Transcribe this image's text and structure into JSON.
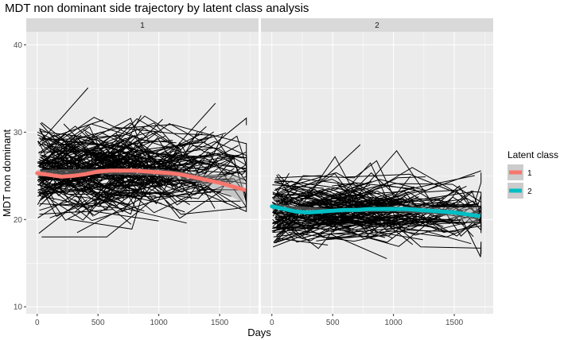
{
  "chart_data": {
    "type": "line",
    "title": "MDT non dominant side trajectory by latent class analysis",
    "xlabel": "Days",
    "ylabel": "MDT non dominant",
    "xlim": [
      -90,
      1820
    ],
    "ylim": [
      9.2,
      41.5
    ],
    "x_ticks": [
      0,
      500,
      1000,
      1500
    ],
    "y_ticks": [
      10,
      20,
      30,
      40
    ],
    "grid": true,
    "facets": [
      "1",
      "2"
    ],
    "legend": {
      "title": "Latent class",
      "position": "right",
      "entries": [
        {
          "label": "1",
          "color": "#F8766D"
        },
        {
          "label": "2",
          "color": "#00BFC4"
        }
      ]
    },
    "series": [
      {
        "name": "1",
        "facet": "1",
        "color": "#F8766D",
        "smooth": [
          {
            "x": 0,
            "y": 25.3
          },
          {
            "x": 100,
            "y": 25.1
          },
          {
            "x": 200,
            "y": 24.9
          },
          {
            "x": 300,
            "y": 25.0
          },
          {
            "x": 400,
            "y": 25.2
          },
          {
            "x": 500,
            "y": 25.5
          },
          {
            "x": 600,
            "y": 25.6
          },
          {
            "x": 700,
            "y": 25.6
          },
          {
            "x": 800,
            "y": 25.6
          },
          {
            "x": 900,
            "y": 25.5
          },
          {
            "x": 1000,
            "y": 25.4
          },
          {
            "x": 1100,
            "y": 25.3
          },
          {
            "x": 1200,
            "y": 25.1
          },
          {
            "x": 1300,
            "y": 24.8
          },
          {
            "x": 1400,
            "y": 24.5
          },
          {
            "x": 1500,
            "y": 24.2
          },
          {
            "x": 1600,
            "y": 23.8
          },
          {
            "x": 1700,
            "y": 23.4
          }
        ],
        "ci": [
          {
            "x": 0,
            "lo": 24.9,
            "hi": 25.7
          },
          {
            "x": 500,
            "lo": 25.2,
            "hi": 25.8
          },
          {
            "x": 1000,
            "lo": 25.0,
            "hi": 25.8
          },
          {
            "x": 1300,
            "lo": 24.3,
            "hi": 25.3
          },
          {
            "x": 1500,
            "lo": 23.3,
            "hi": 25.1
          },
          {
            "x": 1600,
            "lo": 22.6,
            "hi": 25.0
          },
          {
            "x": 1700,
            "lo": 21.9,
            "hi": 24.9
          }
        ]
      },
      {
        "name": "2",
        "facet": "2",
        "color": "#00BFC4",
        "smooth": [
          {
            "x": 0,
            "y": 21.5
          },
          {
            "x": 100,
            "y": 21.2
          },
          {
            "x": 200,
            "y": 20.9
          },
          {
            "x": 300,
            "y": 20.8
          },
          {
            "x": 400,
            "y": 20.9
          },
          {
            "x": 500,
            "y": 21.0
          },
          {
            "x": 600,
            "y": 21.1
          },
          {
            "x": 700,
            "y": 21.1
          },
          {
            "x": 800,
            "y": 21.2
          },
          {
            "x": 900,
            "y": 21.2
          },
          {
            "x": 1000,
            "y": 21.2
          },
          {
            "x": 1100,
            "y": 21.2
          },
          {
            "x": 1200,
            "y": 21.1
          },
          {
            "x": 1300,
            "y": 21.0
          },
          {
            "x": 1400,
            "y": 20.9
          },
          {
            "x": 1500,
            "y": 20.8
          },
          {
            "x": 1600,
            "y": 20.6
          },
          {
            "x": 1700,
            "y": 20.4
          }
        ],
        "ci": [
          {
            "x": 0,
            "lo": 21.2,
            "hi": 21.8
          },
          {
            "x": 500,
            "lo": 20.8,
            "hi": 21.2
          },
          {
            "x": 1000,
            "lo": 20.9,
            "hi": 21.5
          },
          {
            "x": 1300,
            "lo": 20.6,
            "hi": 21.4
          },
          {
            "x": 1500,
            "lo": 20.2,
            "hi": 21.4
          },
          {
            "x": 1600,
            "lo": 19.8,
            "hi": 21.4
          },
          {
            "x": 1700,
            "lo": 19.4,
            "hi": 21.5
          }
        ]
      }
    ]
  }
}
